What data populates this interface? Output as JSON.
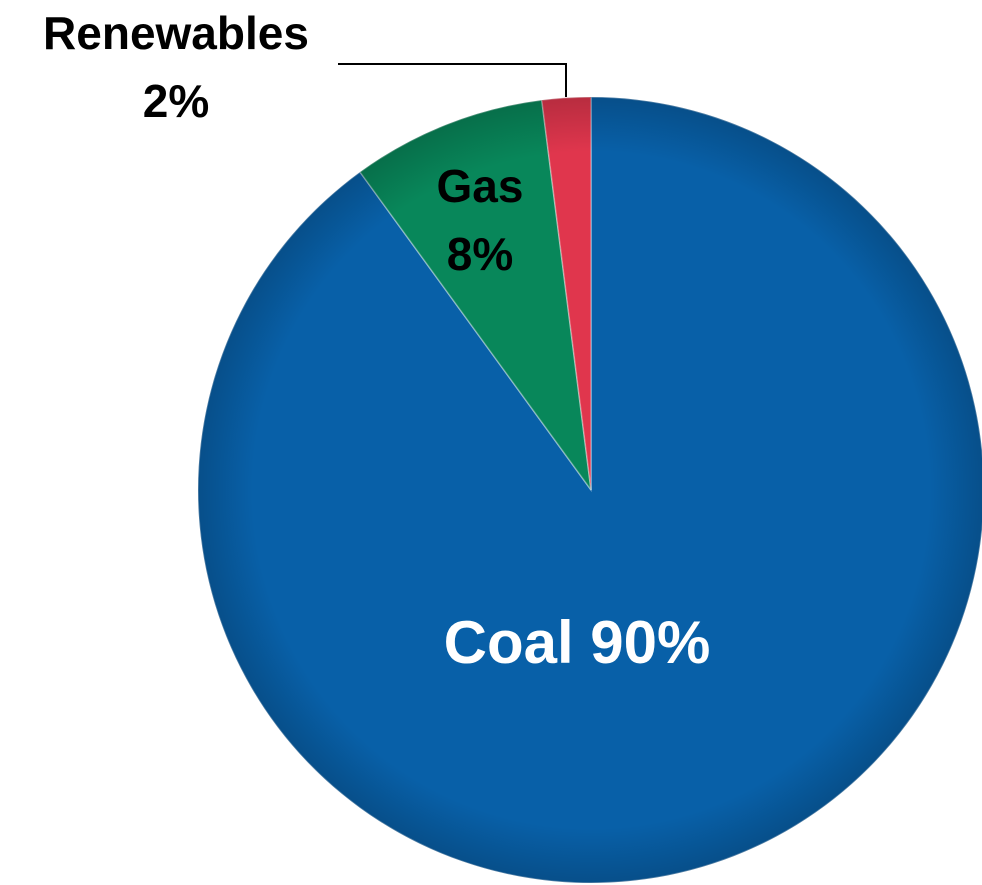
{
  "chart_data": {
    "type": "pie",
    "title": "",
    "slices": [
      {
        "name": "Coal",
        "value": 90,
        "label_line1": "Coal 90%",
        "label_line2": "",
        "color": "#0860A8",
        "text_color": "#FFFFFF"
      },
      {
        "name": "Gas",
        "value": 8,
        "label_line1": "Gas",
        "label_line2": "8%",
        "color": "#08875A",
        "text_color": "#000000"
      },
      {
        "name": "Renewables",
        "value": 2,
        "label_line1": "Renewables",
        "label_line2": "2%",
        "color": "#E0364D",
        "text_color": "#000000"
      }
    ],
    "start_angle_deg": 0,
    "direction": "clockwise",
    "legend": "none"
  }
}
